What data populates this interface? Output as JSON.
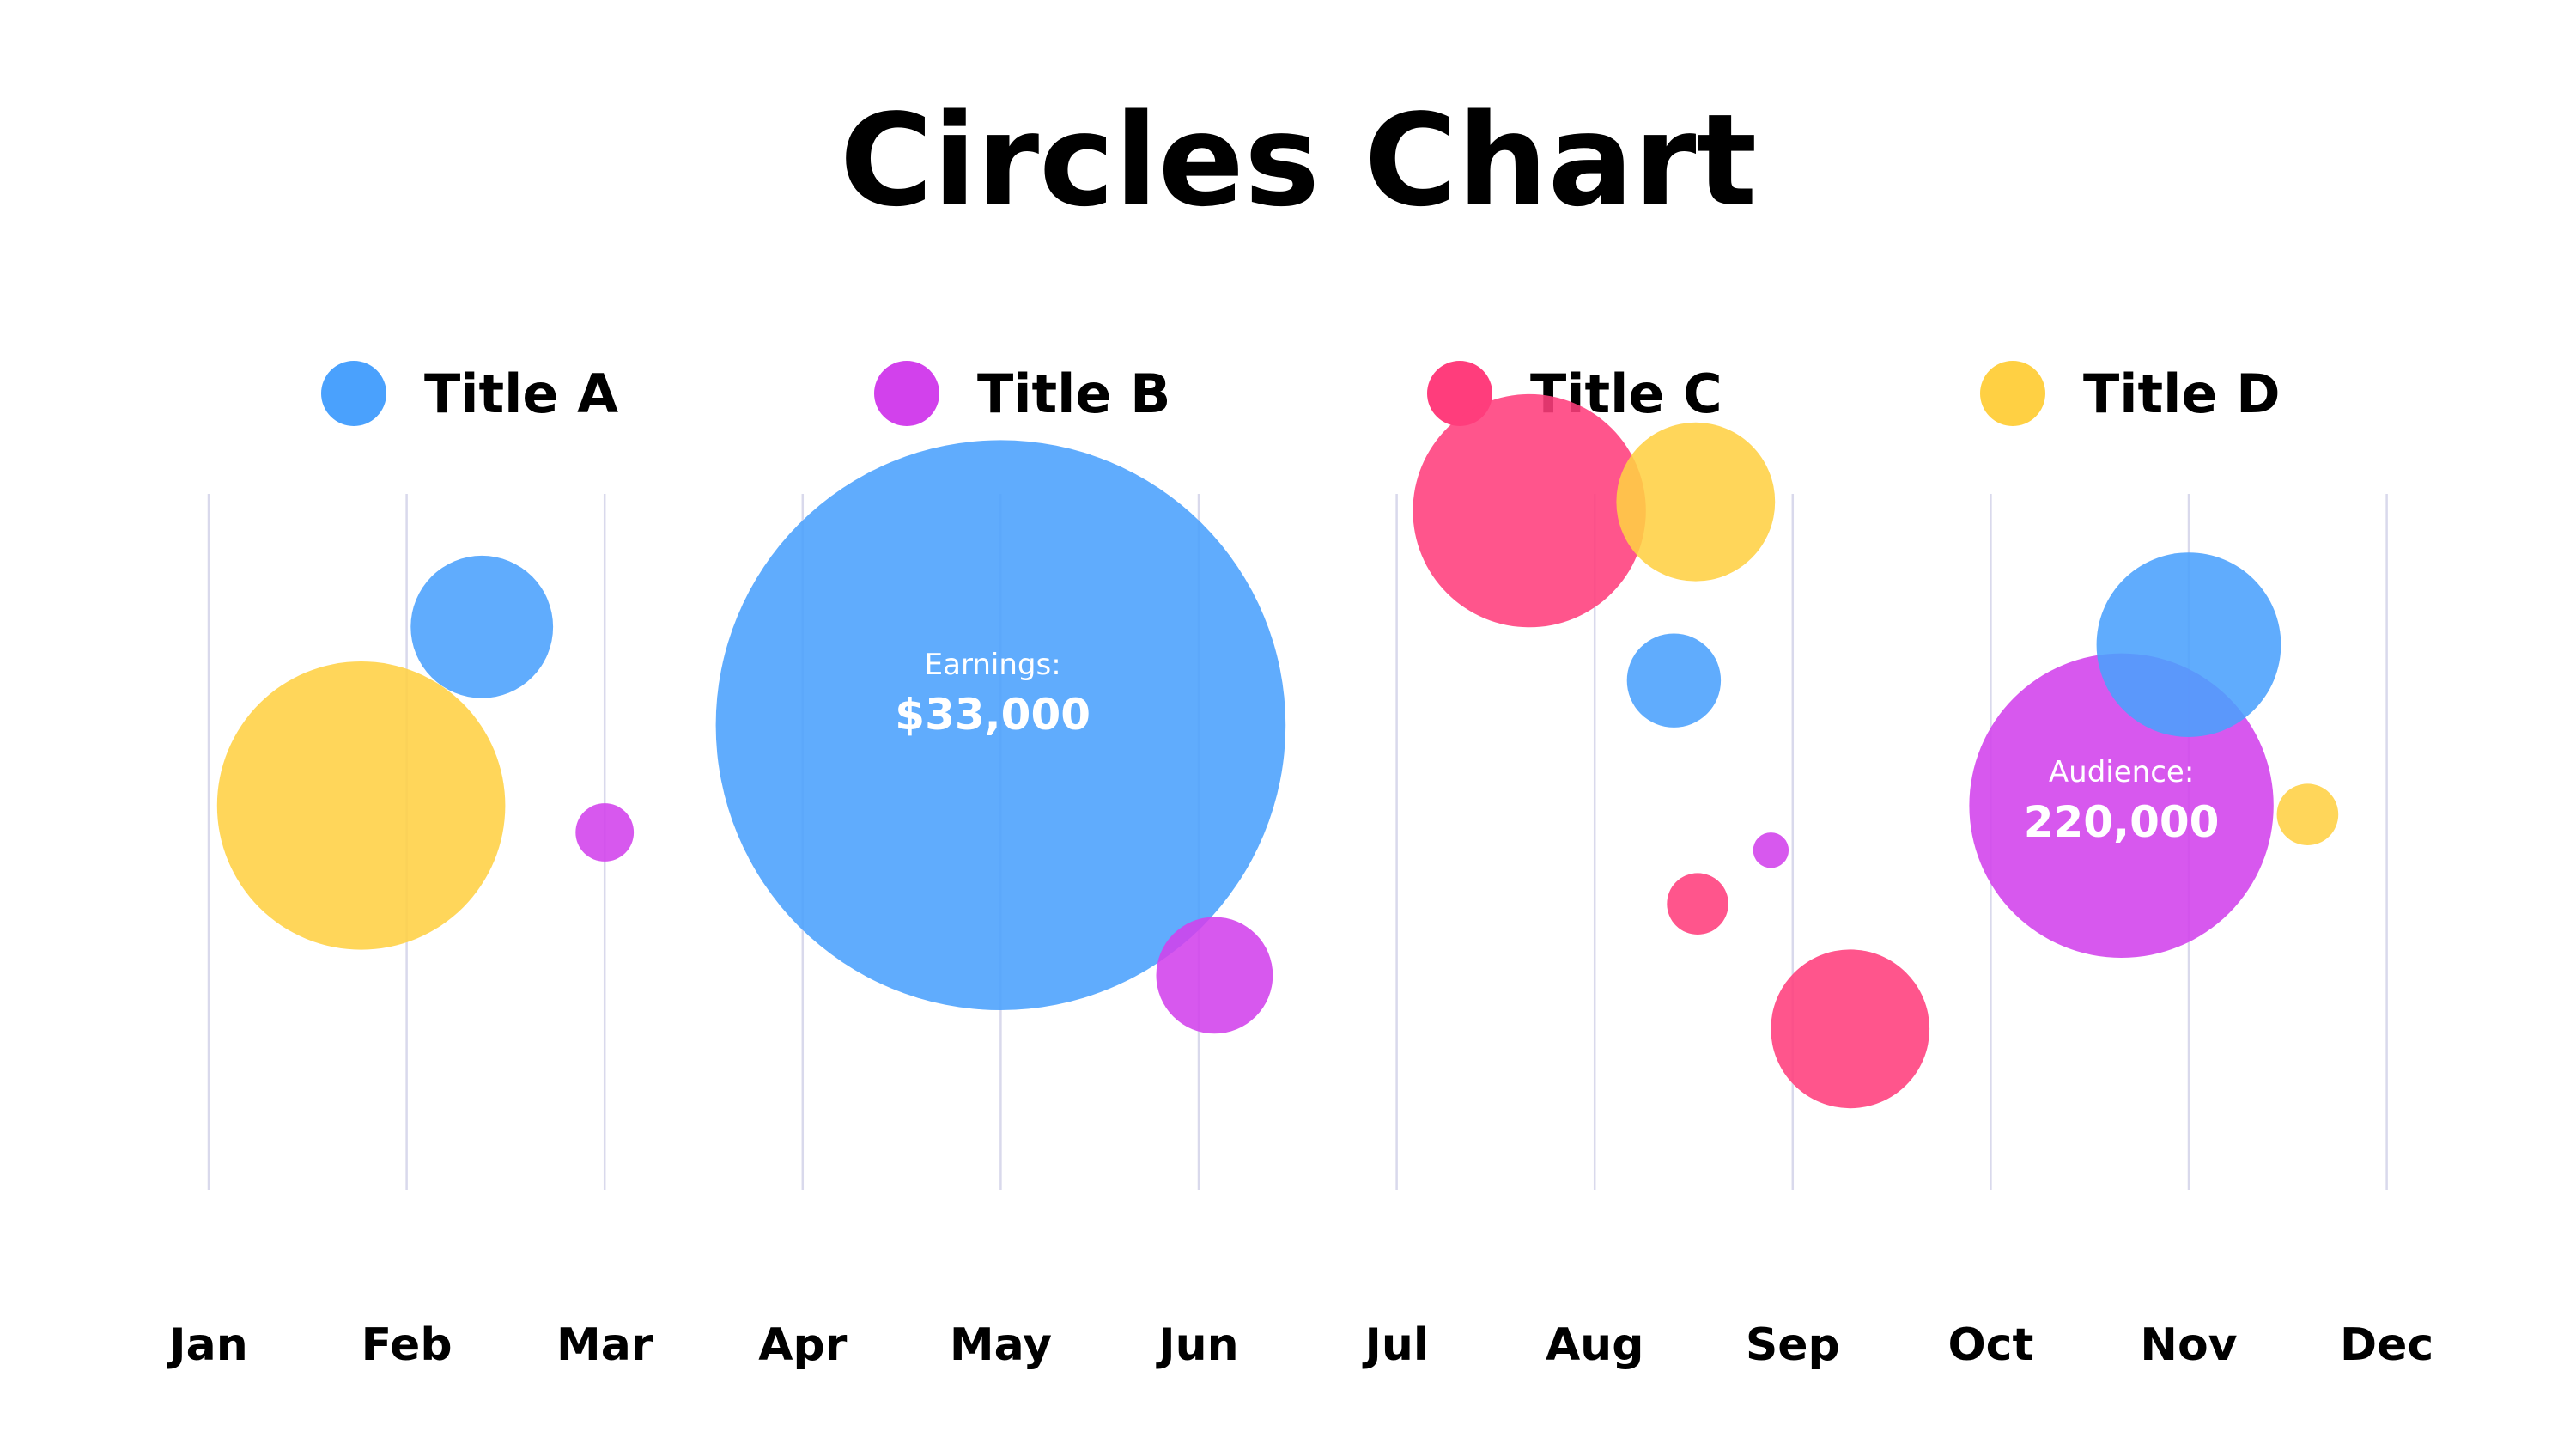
{
  "chart_data": {
    "type": "scatter",
    "title": "Circles Chart",
    "categories": [
      "Jan",
      "Feb",
      "Mar",
      "Apr",
      "May",
      "Jun",
      "Jul",
      "Aug",
      "Sep",
      "Oct",
      "Nov",
      "Dec"
    ],
    "grid": true,
    "legend_position": "top",
    "series": [
      {
        "name": "Title A",
        "color": "#4aa1fd",
        "points": [
          {
            "x": 2.38,
            "y": 63,
            "size": 44
          },
          {
            "x": 5.0,
            "y": 52,
            "size": 176
          },
          {
            "x": 8.4,
            "y": 57,
            "size": 29
          },
          {
            "x": 11.0,
            "y": 61,
            "size": 57
          }
        ]
      },
      {
        "name": "Title B",
        "color": "#d241ec",
        "points": [
          {
            "x": 3.0,
            "y": 40,
            "size": 18
          },
          {
            "x": 6.08,
            "y": 24,
            "size": 36
          },
          {
            "x": 8.89,
            "y": 38,
            "size": 11
          },
          {
            "x": 10.66,
            "y": 43,
            "size": 94
          }
        ]
      },
      {
        "name": "Title C",
        "color": "#ff3d7c",
        "points": [
          {
            "x": 7.67,
            "y": 76,
            "size": 72
          },
          {
            "x": 8.52,
            "y": 32,
            "size": 19
          },
          {
            "x": 9.29,
            "y": 18,
            "size": 49
          }
        ]
      },
      {
        "name": "Title D",
        "color": "#ffd043",
        "points": [
          {
            "x": 1.77,
            "y": 43,
            "size": 89
          },
          {
            "x": 8.51,
            "y": 77,
            "size": 49
          },
          {
            "x": 11.6,
            "y": 42,
            "size": 19
          }
        ]
      }
    ],
    "annotations": [
      {
        "label": "Earnings:",
        "value": "$33,000",
        "x": 4.96,
        "y": 55
      },
      {
        "label": "Audience:",
        "value": "220,000",
        "x": 10.66,
        "y": 43
      }
    ]
  }
}
